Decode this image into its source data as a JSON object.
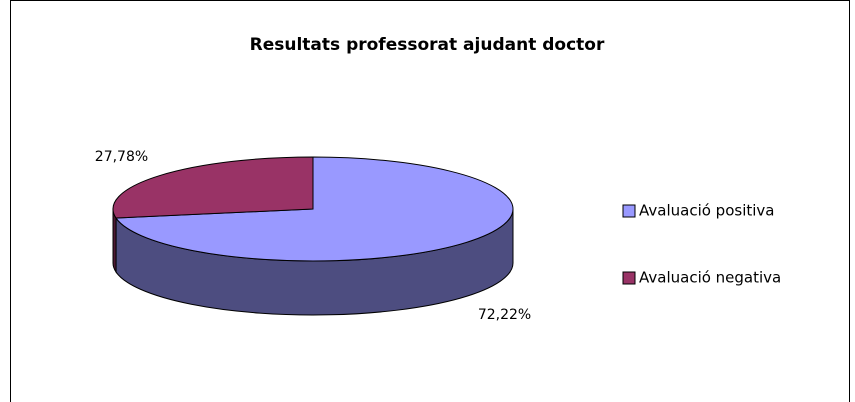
{
  "chart_data": {
    "type": "pie",
    "title": "Resultats professorat ajudant doctor",
    "categories": [
      "Avaluació positiva",
      "Avaluació negativa"
    ],
    "values": [
      72.22,
      27.78
    ],
    "value_labels": [
      "72,22%",
      "27,78%"
    ],
    "colors": [
      "#9999ff",
      "#993366"
    ],
    "legend": "right"
  }
}
